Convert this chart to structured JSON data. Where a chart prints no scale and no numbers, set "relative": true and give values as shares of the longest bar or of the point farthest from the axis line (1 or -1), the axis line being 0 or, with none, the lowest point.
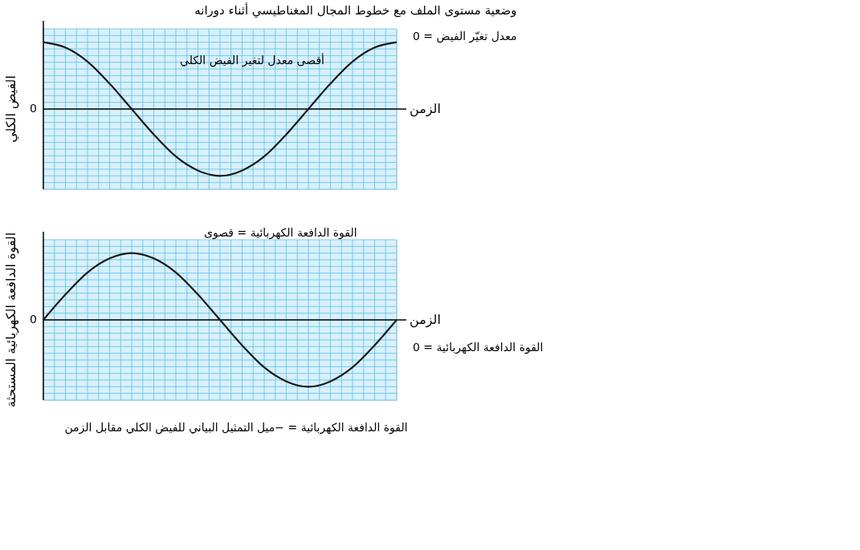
{
  "chart_data": [
    {
      "type": "line",
      "relative": true,
      "title": "وضعية مستوى الملف مع خطوط المجال المغناطيسي أثناء دورانه",
      "xlabel": "الزمن",
      "ylabel": "الفيض الكلي",
      "grid": true,
      "marker": "none",
      "line_style": "solid",
      "categories": [
        null,
        null,
        null,
        null,
        null,
        null,
        null,
        null,
        null,
        null,
        null,
        null,
        null,
        null,
        null,
        null,
        null
      ],
      "series": [
        {
          "color": "#1a1a1a",
          "values": [
            1,
            0.92,
            0.71,
            0.38,
            0,
            -0.38,
            -0.71,
            -0.92,
            -1,
            -0.92,
            -0.71,
            -0.38,
            0,
            0.38,
            0.71,
            0.92,
            1
          ]
        }
      ],
      "annotations": [
        "0",
        "أقصى معدل لتغير الفيض الكلي",
        "معدل تغيّر الفيض = 0"
      ]
    },
    {
      "type": "line",
      "relative": true,
      "xlabel": "الزمن",
      "ylabel": "القوة الدافعة الكهربائية المستحثة",
      "grid": true,
      "marker": "none",
      "line_style": "solid",
      "categories": [
        null,
        null,
        null,
        null,
        null,
        null,
        null,
        null,
        null,
        null,
        null,
        null,
        null,
        null,
        null,
        null,
        null
      ],
      "series": [
        {
          "color": "#1a1a1a",
          "values": [
            0,
            0.38,
            0.71,
            0.92,
            1,
            0.92,
            0.71,
            0.38,
            0,
            -0.38,
            -0.71,
            -0.92,
            -1,
            -0.92,
            -0.71,
            -0.38,
            0
          ]
        }
      ],
      "annotations": [
        "0",
        "القوة الدافعة الكهربائية = قصوى",
        "القوة الدافعة الكهربائية = 0",
        "القوة الدافعة الكهربائية = −ميل التمثيل البياني للفيض الكلي مقابل الزمن"
      ]
    }
  ]
}
